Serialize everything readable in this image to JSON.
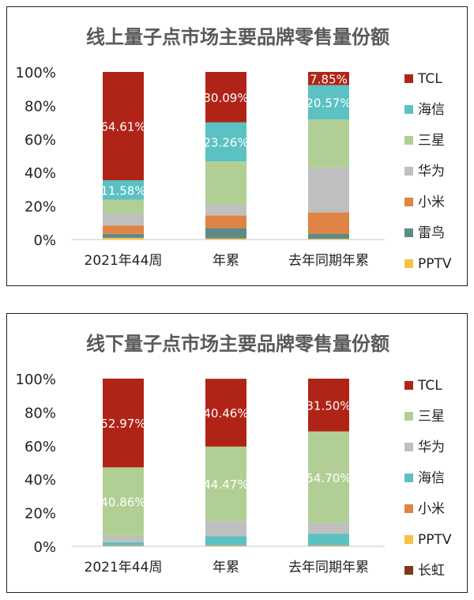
{
  "colors": {
    "TCL": "#B02418",
    "海信": "#5BC1C2",
    "三星": "#B1CF95",
    "华为": "#BFBFBF",
    "小米": "#E08445",
    "雷鸟": "#5F8A85",
    "PPTV": "#F5C342",
    "长虹": "#7B3A14"
  },
  "chart_data": [
    {
      "type": "bar",
      "stacked": true,
      "title": "线上量子点市场主要品牌零售量份额",
      "categories": [
        "2021年44周",
        "年累",
        "去年同期年累"
      ],
      "yticks": [
        "0%",
        "20%",
        "40%",
        "60%",
        "80%",
        "100%"
      ],
      "ylim": [
        0,
        100
      ],
      "legend": [
        "TCL",
        "海信",
        "三星",
        "华为",
        "小米",
        "雷鸟",
        "PPTV"
      ],
      "legend_position": "right",
      "series": [
        {
          "name": "PPTV",
          "values": [
            1.0,
            0.65,
            0.4
          ],
          "labels": [
            "",
            "",
            ""
          ]
        },
        {
          "name": "雷鸟",
          "values": [
            2.4,
            6.3,
            3.1
          ],
          "labels": [
            "",
            "",
            ""
          ]
        },
        {
          "name": "小米",
          "values": [
            5.0,
            7.4,
            12.7
          ],
          "labels": [
            "",
            "",
            ""
          ]
        },
        {
          "name": "华为",
          "values": [
            7.1,
            6.6,
            26.8
          ],
          "labels": [
            "",
            "",
            ""
          ]
        },
        {
          "name": "三星",
          "values": [
            8.3,
            25.7,
            28.6
          ],
          "labels": [
            "",
            "",
            ""
          ]
        },
        {
          "name": "海信",
          "values": [
            11.58,
            23.26,
            20.57
          ],
          "labels": [
            "11.58%",
            "23.26%",
            "20.57%"
          ]
        },
        {
          "name": "TCL",
          "values": [
            64.61,
            30.09,
            7.85
          ],
          "labels": [
            "64.61%",
            "30.09%",
            "7.85%"
          ]
        }
      ]
    },
    {
      "type": "bar",
      "stacked": true,
      "title": "线下量子点市场主要品牌零售量份额",
      "categories": [
        "2021年44周",
        "年累",
        "去年同期年累"
      ],
      "yticks": [
        "0%",
        "20%",
        "40%",
        "60%",
        "80%",
        "100%"
      ],
      "ylim": [
        0,
        100
      ],
      "legend": [
        "TCL",
        "三星",
        "华为",
        "海信",
        "小米",
        "PPTV",
        "长虹"
      ],
      "legend_position": "right",
      "series": [
        {
          "name": "长虹",
          "values": [
            0.1,
            0.1,
            0.1
          ],
          "labels": [
            "",
            "",
            ""
          ]
        },
        {
          "name": "PPTV",
          "values": [
            0.2,
            0.2,
            0.2
          ],
          "labels": [
            "",
            "",
            ""
          ]
        },
        {
          "name": "小米",
          "values": [
            0.2,
            0.3,
            0.3
          ],
          "labels": [
            "",
            "",
            ""
          ]
        },
        {
          "name": "海信",
          "values": [
            1.9,
            5.3,
            6.9
          ],
          "labels": [
            "",
            "",
            ""
          ]
        },
        {
          "name": "华为",
          "values": [
            3.8,
            9.1,
            6.3
          ],
          "labels": [
            "",
            "",
            ""
          ]
        },
        {
          "name": "三星",
          "values": [
            40.86,
            44.47,
            54.7
          ],
          "labels": [
            "40.86%",
            "44.47%",
            "54.70%"
          ]
        },
        {
          "name": "TCL",
          "values": [
            52.97,
            40.46,
            31.5
          ],
          "labels": [
            "52.97%",
            "40.46%",
            "31.50%"
          ]
        }
      ]
    }
  ]
}
